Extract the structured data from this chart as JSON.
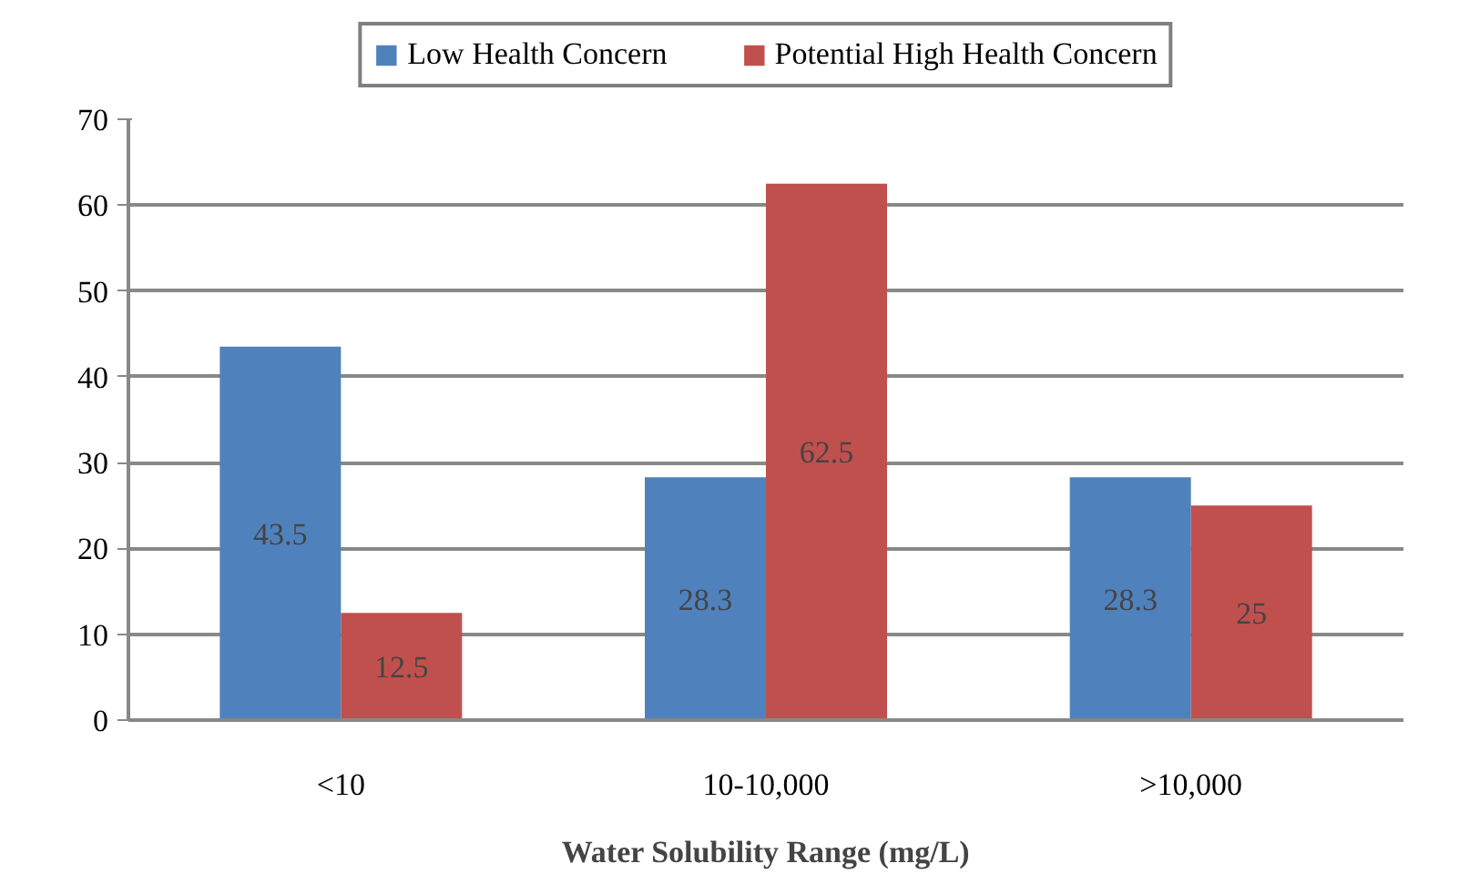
{
  "chart_data": {
    "type": "bar",
    "xlabel": "Water Solubility Range (mg/L)",
    "categories": [
      "<10",
      "10-10,000",
      ">10,000"
    ],
    "series": [
      {
        "name": "Low Health Concern",
        "color": "#4f81bd",
        "values": [
          43.5,
          28.3,
          28.3
        ]
      },
      {
        "name": "Potential High Health Concern",
        "color": "#c0504d",
        "values": [
          12.5,
          62.5,
          25
        ]
      }
    ],
    "ylim": [
      0,
      70
    ],
    "yticks": [
      0,
      10,
      20,
      30,
      40,
      50,
      60,
      70
    ],
    "grid": "y",
    "legend": "top",
    "data_labels": true
  }
}
